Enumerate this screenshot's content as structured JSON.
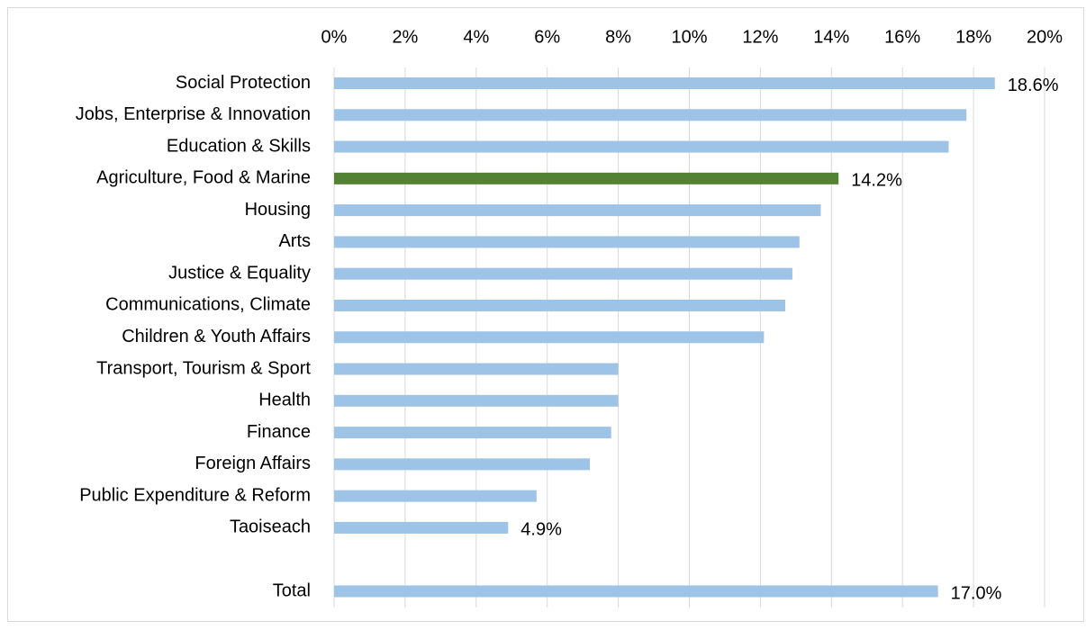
{
  "chart_data": {
    "type": "bar",
    "orientation": "horizontal",
    "categories": [
      "Social Protection",
      "Jobs, Enterprise & Innovation",
      "Education & Skills",
      "Agriculture, Food & Marine",
      "Housing",
      "Arts",
      "Justice & Equality",
      "Communications, Climate",
      "Children & Youth Affairs",
      "Transport, Tourism & Sport",
      "Health",
      "Finance",
      "Foreign Affairs",
      "Public Expenditure & Reform",
      "Taoiseach",
      null,
      "Total"
    ],
    "values": [
      18.6,
      17.8,
      17.3,
      14.2,
      13.7,
      13.1,
      12.9,
      12.7,
      12.1,
      8.0,
      8.0,
      7.8,
      7.2,
      5.7,
      4.9,
      null,
      17.0
    ],
    "value_labels": [
      "18.6%",
      null,
      null,
      "14.2%",
      null,
      null,
      null,
      null,
      null,
      null,
      null,
      null,
      null,
      null,
      "4.9%",
      null,
      "17.0%"
    ],
    "colors": [
      "#9dc3e6",
      "#9dc3e6",
      "#9dc3e6",
      "#548235",
      "#9dc3e6",
      "#9dc3e6",
      "#9dc3e6",
      "#9dc3e6",
      "#9dc3e6",
      "#9dc3e6",
      "#9dc3e6",
      "#9dc3e6",
      "#9dc3e6",
      "#9dc3e6",
      "#9dc3e6",
      null,
      "#9dc3e6"
    ],
    "xlim": [
      0,
      20
    ],
    "xticks": [
      {
        "value": 0,
        "label": "0%"
      },
      {
        "value": 2,
        "label": "2%"
      },
      {
        "value": 4,
        "label": "4%"
      },
      {
        "value": 6,
        "label": "6%"
      },
      {
        "value": 8,
        "label": "8%"
      },
      {
        "value": 10,
        "label": "10%"
      },
      {
        "value": 12,
        "label": "12%"
      },
      {
        "value": 14,
        "label": "14%"
      },
      {
        "value": 16,
        "label": "16%"
      },
      {
        "value": 18,
        "label": "18%"
      },
      {
        "value": 20,
        "label": "20%"
      }
    ],
    "xaxis_position": "top",
    "grid": true
  }
}
